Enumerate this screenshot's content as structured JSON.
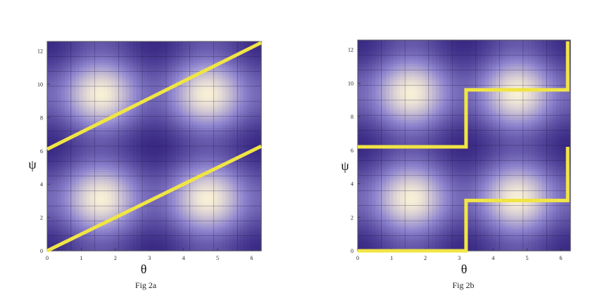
{
  "chart_data": [
    {
      "type": "heatmap",
      "caption": "Fig 2a",
      "xlabel": "θ",
      "ylabel": "ψ",
      "x_tick_labels": [
        "0",
        "1",
        "2",
        "3",
        "4",
        "5",
        "6"
      ],
      "y_tick_labels": [
        "0",
        "2",
        "4",
        "6",
        "8",
        "10",
        "12"
      ],
      "xlim": [
        0,
        6.28
      ],
      "ylim": [
        0,
        12.57
      ],
      "grid": true,
      "colors": {
        "low": "#3a2a85",
        "mid": "#8f85cf",
        "high": "#f8efd6",
        "path": "#f0e544"
      },
      "paths": [
        {
          "x": [
            0,
            6.28
          ],
          "y": [
            0,
            6.28
          ]
        },
        {
          "x": [
            0,
            6.28
          ],
          "y": [
            6.1,
            12.5
          ]
        }
      ]
    },
    {
      "type": "heatmap",
      "caption": "Fig 2b",
      "xlabel": "θ",
      "ylabel": "ψ",
      "x_tick_labels": [
        "0",
        "1",
        "2",
        "3",
        "4",
        "5",
        "6"
      ],
      "y_tick_labels": [
        "0",
        "2",
        "4",
        "6",
        "8",
        "10",
        "12"
      ],
      "xlim": [
        0,
        6.28
      ],
      "ylim": [
        0,
        12.57
      ],
      "grid": true,
      "colors": {
        "low": "#3a2a85",
        "mid": "#8f85cf",
        "high": "#f8efd6",
        "path": "#f0e544"
      },
      "paths": [
        {
          "x": [
            0,
            3.2,
            3.2,
            6.2,
            6.2
          ],
          "y": [
            0,
            0,
            3.0,
            3.0,
            6.2
          ]
        },
        {
          "x": [
            0,
            3.2,
            3.2,
            6.2,
            6.2
          ],
          "y": [
            6.2,
            6.2,
            9.6,
            9.6,
            12.5
          ]
        }
      ]
    }
  ]
}
